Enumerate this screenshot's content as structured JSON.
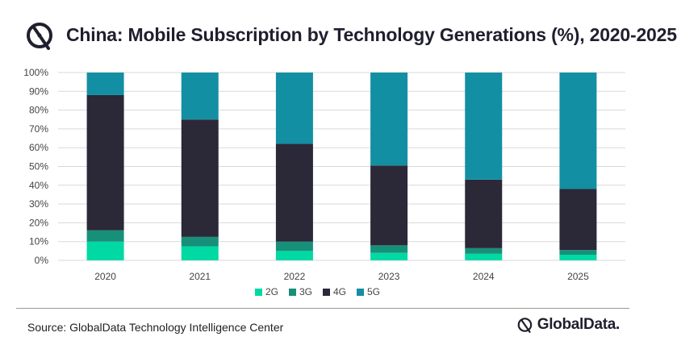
{
  "header": {
    "title": "China: Mobile Subscription by Technology Generations (%), 2020-2025"
  },
  "footer": {
    "source": "Source: GlobalData Technology Intelligence Center",
    "brand": "GlobalData."
  },
  "colors": {
    "2G": "#00d9a3",
    "3G": "#17907a",
    "4G": "#2b2838",
    "5G": "#138fa3"
  },
  "chart_data": {
    "type": "bar",
    "stacked": true,
    "title": "China: Mobile Subscription by Technology Generations (%), 2020-2025",
    "categories": [
      "2020",
      "2021",
      "2022",
      "2023",
      "2024",
      "2025"
    ],
    "series": [
      {
        "name": "2G",
        "values": [
          10,
          7.5,
          5,
          4,
          3.5,
          3
        ]
      },
      {
        "name": "3G",
        "values": [
          6,
          5,
          5,
          4,
          3,
          2.5
        ]
      },
      {
        "name": "4G",
        "values": [
          72,
          62.5,
          52,
          42.5,
          36.5,
          32.5
        ]
      },
      {
        "name": "5G",
        "values": [
          12,
          25,
          38,
          49.5,
          57,
          62
        ]
      }
    ],
    "ylim": [
      0,
      100
    ],
    "yticks": [
      "0%",
      "10%",
      "20%",
      "30%",
      "40%",
      "50%",
      "60%",
      "70%",
      "80%",
      "90%",
      "100%"
    ],
    "grid": true,
    "legend_position": "bottom"
  }
}
